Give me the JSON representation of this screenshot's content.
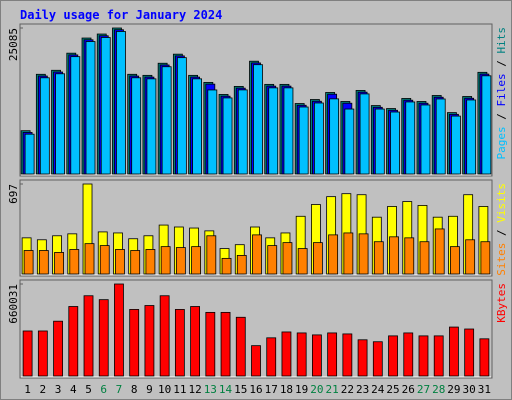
{
  "title": "Daily usage for January 2024",
  "legend_separator": " / ",
  "chart_data": [
    {
      "type": "bar",
      "ylim": [
        0,
        25085
      ],
      "yticks": [
        25085
      ],
      "series": [
        {
          "name": "Pages",
          "color": "#00c0ff",
          "values": [
            6840,
            16530,
            17220,
            20160,
            22760,
            23450,
            24485,
            16530,
            16350,
            18430,
            19990,
            16350,
            14440,
            13070,
            14450,
            18780,
            14800,
            14800,
            11510,
            12200,
            12910,
            11160,
            13760,
            11160,
            10650,
            12380,
            11860,
            12890,
            9950,
            12720,
            16870
          ]
        },
        {
          "name": "Files",
          "color": "#0000ff",
          "values": [
            7140,
            16830,
            17520,
            20460,
            23060,
            23750,
            24785,
            16830,
            16650,
            18730,
            20290,
            16650,
            15440,
            13370,
            14750,
            19080,
            15100,
            15100,
            11810,
            12500,
            13710,
            12160,
            14060,
            11460,
            10950,
            12680,
            12160,
            13190,
            10250,
            13020,
            17170
          ]
        },
        {
          "name": "Hits",
          "color": "#008080",
          "values": [
            7440,
            17130,
            17820,
            20760,
            23360,
            24050,
            25085,
            17130,
            16950,
            19030,
            20590,
            16950,
            15740,
            13670,
            15050,
            19380,
            15400,
            15400,
            12110,
            12800,
            14010,
            12460,
            14360,
            11760,
            11250,
            12980,
            12460,
            13490,
            10550,
            13320,
            17470
          ]
        }
      ]
    },
    {
      "type": "bar",
      "ylim": [
        0,
        697
      ],
      "yticks": [
        697
      ],
      "series": [
        {
          "name": "Sites",
          "color": "#ff8000",
          "values": [
            182,
            182,
            167,
            190,
            235,
            220,
            190,
            182,
            190,
            212,
            205,
            212,
            296,
            121,
            144,
            303,
            220,
            243,
            197,
            243,
            303,
            318,
            311,
            250,
            288,
            280,
            250,
            349,
            212,
            265,
            250
          ]
        },
        {
          "name": "Visits",
          "color": "#ffff00",
          "values": [
            280,
            265,
            296,
            311,
            697,
            326,
            318,
            273,
            296,
            379,
            364,
            356,
            334,
            197,
            227,
            364,
            280,
            318,
            447,
            538,
            599,
            622,
            614,
            440,
            523,
            561,
            531,
            440,
            447,
            614,
            523
          ]
        }
      ]
    },
    {
      "type": "bar",
      "ylim": [
        0,
        660031
      ],
      "yticks": [
        660031
      ],
      "categories": [
        "1",
        "2",
        "3",
        "4",
        "5",
        "6",
        "7",
        "8",
        "9",
        "10",
        "11",
        "12",
        "13",
        "14",
        "15",
        "16",
        "17",
        "18",
        "19",
        "20",
        "21",
        "22",
        "23",
        "24",
        "25",
        "26",
        "27",
        "28",
        "29",
        "30",
        "31"
      ],
      "category_colors": [
        "#000000",
        "#000000",
        "#000000",
        "#000000",
        "#000000",
        "#008040",
        "#008040",
        "#000000",
        "#000000",
        "#000000",
        "#000000",
        "#000000",
        "#008040",
        "#008040",
        "#000000",
        "#000000",
        "#000000",
        "#000000",
        "#000000",
        "#008040",
        "#008040",
        "#000000",
        "#000000",
        "#000000",
        "#000000",
        "#000000",
        "#008040",
        "#008040",
        "#000000",
        "#000000",
        "#000000"
      ],
      "series": [
        {
          "name": "KBytes",
          "color": "#ff0000",
          "values": [
            323000,
            323000,
            393200,
            498600,
            575800,
            547700,
            660031,
            477500,
            505600,
            575800,
            477500,
            498600,
            456400,
            456400,
            421300,
            217700,
            273900,
            316000,
            309000,
            294900,
            309000,
            301900,
            259800,
            245800,
            287900,
            309000,
            287900,
            287900,
            351100,
            337100,
            266800
          ]
        }
      ]
    }
  ]
}
